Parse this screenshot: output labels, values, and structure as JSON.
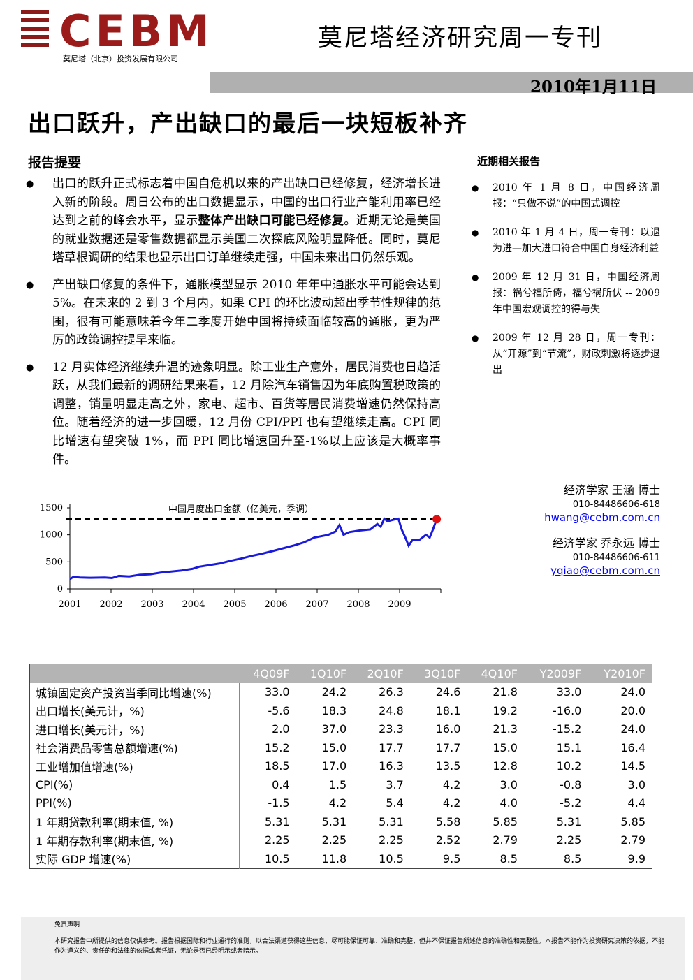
{
  "header": {
    "logo": "CEBM",
    "company": "莫尼塔（北京）投资发展有限公司",
    "title": "莫尼塔经济研究周一专刊",
    "date": "2010年1月11日"
  },
  "headline": "出口跃升，产出缺口的最后一块短板补齐",
  "summary": {
    "heading": "报告提要",
    "bullets": [
      [
        {
          "text": "出口的跃升正式标志着中国自危机以来的产出缺口已经修复，经济增长进入新的阶段。周日公布的出口数据显示，中国的出口行业产能利用率已经达到之前的峰会水平，显示",
          "bold": false
        },
        {
          "text": "整体产出缺口可能已经修复",
          "bold": true
        },
        {
          "text": "。近期无论是美国的就业数据还是零售数据都显示美国二次探底风险明显降低。同时，莫尼塔草根调研的结果也显示出口订单继续走强，中国未来出口仍然乐观。",
          "bold": false
        }
      ],
      [
        {
          "text": "产出缺口修复的条件下，通胀模型显示 2010 年年中通胀水平可能会达到 5%。在未来的 2 到 3 个月内，如果 CPI 的环比波动超出季节性规律的范围，很有可能意味着今年二季度开始中国将持续面临较高的通胀，更为严厉的政策调控提早来临。",
          "bold": false
        }
      ],
      [
        {
          "text": "12 月实体经济继续升温的迹象明显。除工业生产意外，居民消费也日趋活跃，从我们最新的调研结果来看，12 月除汽车销售因为年底购置税政策的调整，销量明显走高之外，家电、超市、百货等居民消费增速仍然保持高位。随着经济的进一步回暖，12 月份 CPI/PPI 也有望继续走高。CPI 同比增速有望突破 1%，而 PPI 同比增速回升至-1%以上应该是大概率事件。",
          "bold": false
        }
      ]
    ]
  },
  "related": {
    "heading": "近期相关报告",
    "items": [
      "2010 年 1 月 8 日，中国经济周报：“只做不说”的中国式调控",
      "2010 年 1 月 4 日，周一专刊：以退为进—加大进口符合中国自身经济利益",
      "2009 年 12 月 31 日，中国经济周报：祸兮福所倚，福兮祸所伏 -- 2009 年中国宏观调控的得与失",
      "2009 年 12 月 28 日，周一专刊：从“开源”到“节流”，财政刺激将逐步退出"
    ]
  },
  "authors": [
    {
      "title": "经济学家 王涵 博士",
      "phone": "010-84486606-618",
      "email": "hwang@cebm.com.cn"
    },
    {
      "title": "经济学家 乔永远 博士",
      "phone": "010-84486606-611",
      "email": "yqiao@cebm.com.cn"
    }
  ],
  "chart_data": {
    "type": "line",
    "title": "中国月度出口金额（亿美元，季调）",
    "x": [
      2001.0,
      2001.08,
      2001.25,
      2001.51,
      2001.85,
      2002.02,
      2002.19,
      2002.44,
      2002.69,
      2002.95,
      2003.2,
      2003.46,
      2003.71,
      2003.97,
      2004.14,
      2004.39,
      2004.64,
      2004.9,
      2005.15,
      2005.41,
      2005.66,
      2005.92,
      2006.17,
      2006.42,
      2006.68,
      2006.93,
      2007.27,
      2007.44,
      2007.54,
      2007.64,
      2007.78,
      2008.03,
      2008.29,
      2008.46,
      2008.54,
      2008.63,
      2008.71,
      2008.8,
      2008.97,
      2009.05,
      2009.14,
      2009.22,
      2009.31,
      2009.47,
      2009.64,
      2009.73,
      2009.81,
      2009.9
    ],
    "series": [
      {
        "color": "#1a1adc",
        "values": [
          180,
          220,
          210,
          205,
          210,
          200,
          240,
          230,
          260,
          270,
          300,
          320,
          340,
          370,
          410,
          440,
          470,
          520,
          560,
          610,
          650,
          700,
          750,
          800,
          860,
          950,
          1000,
          1060,
          1180,
          1000,
          1050,
          1080,
          1100,
          1200,
          1150,
          1300,
          1250,
          1270,
          1300,
          1100,
          950,
          800,
          900,
          900,
          1000,
          950,
          1100,
          1290
        ]
      }
    ],
    "reference_line": 1290,
    "highlight_color": "#e01010",
    "xlim": [
      2001,
      2010
    ],
    "xticks": [
      2001,
      2002,
      2003,
      2004,
      2005,
      2006,
      2007,
      2008,
      2009
    ],
    "ylim": [
      0,
      1500
    ],
    "yticks": [
      0,
      500,
      1000,
      1500
    ]
  },
  "table": {
    "columns": [
      "4Q09F",
      "1Q10F",
      "2Q10F",
      "3Q10F",
      "4Q10F",
      "Y2009F",
      "Y2010F"
    ],
    "rows": [
      [
        "城镇固定资产投资当季同比增速(%)",
        "33.0",
        "24.2",
        "26.3",
        "24.6",
        "21.8",
        "33.0",
        "24.0"
      ],
      [
        "出口增长(美元计，%)",
        "-5.6",
        "18.3",
        "24.8",
        "18.1",
        "19.2",
        "-16.0",
        "20.0"
      ],
      [
        "进口增长(美元计，%)",
        "2.0",
        "37.0",
        "23.3",
        "16.0",
        "21.3",
        "-15.2",
        "24.0"
      ],
      [
        "社会消费品零售总额增速(%)",
        "15.2",
        "15.0",
        "17.7",
        "17.7",
        "15.0",
        "15.1",
        "16.4"
      ],
      [
        "工业增加值增速(%)",
        "18.5",
        "17.0",
        "16.3",
        "13.5",
        "12.8",
        "10.2",
        "14.5"
      ],
      [
        "CPI(%)",
        "0.4",
        "1.5",
        "3.7",
        "4.2",
        "3.0",
        "-0.8",
        "3.0"
      ],
      [
        "PPI(%)",
        "-1.5",
        "4.2",
        "5.4",
        "4.2",
        "4.0",
        "-5.2",
        "4.4"
      ],
      [
        "1 年期贷款利率(期末值, %)",
        "5.31",
        "5.31",
        "5.31",
        "5.58",
        "5.85",
        "5.31",
        "5.85"
      ],
      [
        "1 年期存款利率(期末值, %)",
        "2.25",
        "2.25",
        "2.25",
        "2.52",
        "2.79",
        "2.25",
        "2.79"
      ],
      [
        "实际 GDP 增速(%)",
        "10.5",
        "11.8",
        "10.5",
        "9.5",
        "8.5",
        "8.5",
        "9.9"
      ]
    ]
  },
  "disclaimer": {
    "title": "免责声明",
    "text": "本研究报告中所提供的信息仅供参考。报告根据国际和行业通行的准则，以合法渠道获得这些信息，尽可能保证可靠、准确和完整，但并不保证报告所述信息的准确性和完整性。本报告不能作为投资研究决策的依据，不能作为道义的、责任的和法律的依据或者凭证，无论是否已经明示或者暗示。"
  }
}
